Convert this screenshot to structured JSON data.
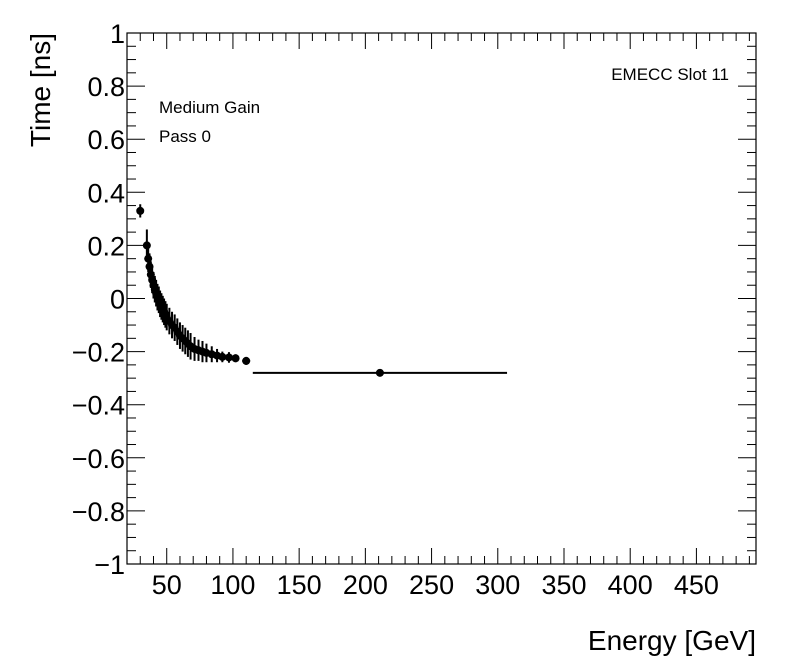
{
  "chart_data": {
    "type": "scatter",
    "xlabel": "Energy [GeV]",
    "ylabel": "Time [ns]",
    "xlim": [
      20,
      495
    ],
    "ylim": [
      -1,
      1
    ],
    "x_ticks": [
      50,
      100,
      150,
      200,
      250,
      300,
      350,
      400,
      450
    ],
    "y_ticks": [
      1,
      0.8,
      0.6,
      0.4,
      0.2,
      0,
      -0.2,
      -0.4,
      -0.6,
      -0.8,
      -1
    ],
    "x_tick_labels": [
      "50",
      "100",
      "150",
      "200",
      "250",
      "300",
      "350",
      "400",
      "450"
    ],
    "y_tick_labels": [
      "1",
      "0.8",
      "0.6",
      "0.4",
      "0.2",
      "0",
      "−0.2",
      "−0.4",
      "−0.6",
      "−0.8",
      "−1"
    ],
    "annotations": [
      "EMECC Slot 11",
      "Medium Gain",
      "Pass 0"
    ],
    "grid": false,
    "points": [
      {
        "x": 30,
        "y": 0.33,
        "yerr": 0.025,
        "xerr": 2
      },
      {
        "x": 35,
        "y": 0.2,
        "yerr": 0.06,
        "xerr": 0.5
      },
      {
        "x": 36,
        "y": 0.15,
        "yerr": 0.05,
        "xerr": 0.5
      },
      {
        "x": 37,
        "y": 0.12,
        "yerr": 0.05,
        "xerr": 0.5
      },
      {
        "x": 38,
        "y": 0.09,
        "yerr": 0.05,
        "xerr": 0.5
      },
      {
        "x": 39,
        "y": 0.07,
        "yerr": 0.05,
        "xerr": 0.5
      },
      {
        "x": 40,
        "y": 0.05,
        "yerr": 0.05,
        "xerr": 0.5
      },
      {
        "x": 41,
        "y": 0.035,
        "yerr": 0.05,
        "xerr": 0.5
      },
      {
        "x": 42,
        "y": 0.02,
        "yerr": 0.05,
        "xerr": 0.5
      },
      {
        "x": 43,
        "y": 0.005,
        "yerr": 0.05,
        "xerr": 0.5
      },
      {
        "x": 44,
        "y": -0.005,
        "yerr": 0.05,
        "xerr": 0.5
      },
      {
        "x": 45,
        "y": -0.02,
        "yerr": 0.05,
        "xerr": 0.5
      },
      {
        "x": 46,
        "y": -0.03,
        "yerr": 0.05,
        "xerr": 0.5
      },
      {
        "x": 47,
        "y": -0.04,
        "yerr": 0.05,
        "xerr": 0.5
      },
      {
        "x": 48,
        "y": -0.05,
        "yerr": 0.05,
        "xerr": 0.5
      },
      {
        "x": 49,
        "y": -0.06,
        "yerr": 0.05,
        "xerr": 0.5
      },
      {
        "x": 50,
        "y": -0.07,
        "yerr": 0.05,
        "xerr": 0.5
      },
      {
        "x": 52,
        "y": -0.085,
        "yerr": 0.05,
        "xerr": 0.5
      },
      {
        "x": 54,
        "y": -0.1,
        "yerr": 0.05,
        "xerr": 0.5
      },
      {
        "x": 56,
        "y": -0.11,
        "yerr": 0.05,
        "xerr": 0.5
      },
      {
        "x": 58,
        "y": -0.125,
        "yerr": 0.05,
        "xerr": 0.5
      },
      {
        "x": 60,
        "y": -0.14,
        "yerr": 0.05,
        "xerr": 0.5
      },
      {
        "x": 62,
        "y": -0.15,
        "yerr": 0.05,
        "xerr": 0.5
      },
      {
        "x": 64,
        "y": -0.16,
        "yerr": 0.05,
        "xerr": 0.5
      },
      {
        "x": 66,
        "y": -0.17,
        "yerr": 0.05,
        "xerr": 0.5
      },
      {
        "x": 68,
        "y": -0.18,
        "yerr": 0.05,
        "xerr": 0.5
      },
      {
        "x": 71,
        "y": -0.19,
        "yerr": 0.045,
        "xerr": 0.5
      },
      {
        "x": 74,
        "y": -0.195,
        "yerr": 0.04,
        "xerr": 0.5
      },
      {
        "x": 77,
        "y": -0.2,
        "yerr": 0.04,
        "xerr": 0.5
      },
      {
        "x": 80,
        "y": -0.205,
        "yerr": 0.035,
        "xerr": 0.5
      },
      {
        "x": 84,
        "y": -0.21,
        "yerr": 0.03,
        "xerr": 0.5
      },
      {
        "x": 88,
        "y": -0.215,
        "yerr": 0.025,
        "xerr": 0.5
      },
      {
        "x": 92,
        "y": -0.22,
        "yerr": 0.02,
        "xerr": 0.5
      },
      {
        "x": 97,
        "y": -0.222,
        "yerr": 0.02,
        "xerr": 1
      },
      {
        "x": 102,
        "y": -0.225,
        "yerr": 0.015,
        "xerr": 1
      },
      {
        "x": 110,
        "y": -0.235,
        "yerr": 0.015,
        "xerr": 3
      },
      {
        "x": 211,
        "y": -0.28,
        "yerr": 0.01,
        "xerr": 96
      }
    ]
  }
}
